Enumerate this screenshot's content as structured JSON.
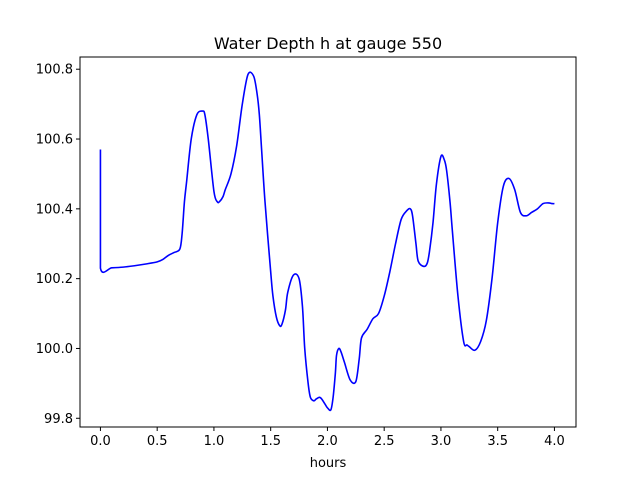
{
  "chart_data": {
    "type": "line",
    "title": "Water Depth h at gauge 550",
    "xlabel": "hours",
    "ylabel": "",
    "xlim": [
      -0.18,
      4.19
    ],
    "ylim": [
      99.775,
      100.835
    ],
    "xticks": [
      0.0,
      0.5,
      1.0,
      1.5,
      2.0,
      2.5,
      3.0,
      3.5,
      4.0
    ],
    "xtick_labels": [
      "0.0",
      "0.5",
      "1.0",
      "1.5",
      "2.0",
      "2.5",
      "3.0",
      "3.5",
      "4.0"
    ],
    "yticks": [
      99.8,
      100.0,
      100.2,
      100.4,
      100.6,
      100.8
    ],
    "ytick_labels": [
      "99.8",
      "100.0",
      "100.2",
      "100.4",
      "100.6",
      "100.8"
    ],
    "grid": false,
    "series": [
      {
        "color": "#0000ff",
        "x": [
          0.0,
          0.0,
          0.0,
          0.1,
          0.2,
          0.3,
          0.4,
          0.5,
          0.55,
          0.6,
          0.65,
          0.7,
          0.72,
          0.74,
          0.76,
          0.8,
          0.85,
          0.9,
          0.92,
          0.95,
          1.0,
          1.03,
          1.05,
          1.08,
          1.1,
          1.15,
          1.2,
          1.25,
          1.3,
          1.35,
          1.38,
          1.4,
          1.42,
          1.45,
          1.5,
          1.52,
          1.55,
          1.58,
          1.6,
          1.63,
          1.65,
          1.7,
          1.75,
          1.78,
          1.8,
          1.83,
          1.85,
          1.88,
          1.9,
          1.93,
          1.95,
          1.98,
          2.0,
          2.03,
          2.05,
          2.07,
          2.08,
          2.1,
          2.12,
          2.15,
          2.2,
          2.25,
          2.28,
          2.3,
          2.35,
          2.4,
          2.45,
          2.5,
          2.55,
          2.6,
          2.65,
          2.7,
          2.73,
          2.75,
          2.78,
          2.8,
          2.85,
          2.88,
          2.9,
          2.93,
          2.96,
          3.0,
          3.03,
          3.05,
          3.08,
          3.1,
          3.15,
          3.2,
          3.23,
          3.25,
          3.3,
          3.35,
          3.4,
          3.45,
          3.5,
          3.55,
          3.6,
          3.65,
          3.7,
          3.75,
          3.8,
          3.85,
          3.9,
          3.95,
          3.98,
          4.0
        ],
        "y": [
          100.57,
          100.4,
          100.23,
          100.231,
          100.233,
          100.237,
          100.242,
          100.248,
          100.255,
          100.267,
          100.275,
          100.285,
          100.33,
          100.42,
          100.48,
          100.6,
          100.67,
          100.68,
          100.67,
          100.6,
          100.45,
          100.42,
          100.421,
          100.435,
          100.455,
          100.5,
          100.58,
          100.7,
          100.785,
          100.78,
          100.73,
          100.67,
          100.57,
          100.42,
          100.22,
          100.15,
          100.09,
          100.065,
          100.07,
          100.11,
          100.16,
          100.21,
          100.2,
          100.12,
          100.0,
          99.9,
          99.86,
          99.85,
          99.855,
          99.86,
          99.855,
          99.84,
          99.83,
          99.824,
          99.86,
          99.93,
          99.98,
          100.0,
          99.99,
          99.96,
          99.91,
          99.905,
          99.97,
          100.03,
          100.055,
          100.085,
          100.1,
          100.15,
          100.22,
          100.3,
          100.37,
          100.395,
          100.4,
          100.38,
          100.3,
          100.25,
          100.235,
          100.245,
          100.28,
          100.36,
          100.47,
          100.55,
          100.54,
          100.51,
          100.42,
          100.34,
          100.15,
          100.02,
          100.01,
          100.005,
          99.995,
          100.02,
          100.08,
          100.2,
          100.36,
          100.465,
          100.487,
          100.455,
          100.39,
          100.38,
          100.39,
          100.4,
          100.415,
          100.417,
          100.415,
          100.415
        ]
      }
    ]
  }
}
